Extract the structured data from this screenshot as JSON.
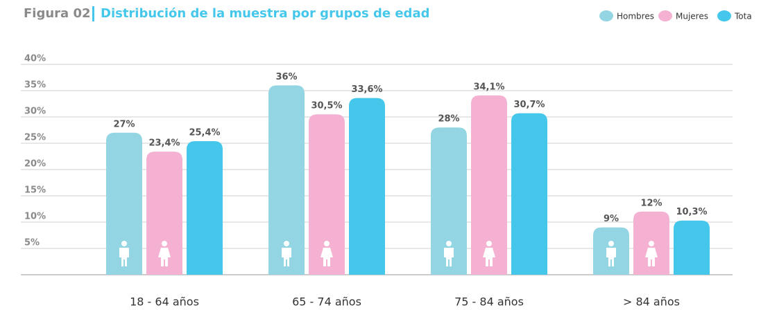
{
  "chart_data": {
    "type": "bar",
    "figure_label": "Figura 02",
    "title": "Distribución de la muestra por grupos de edad",
    "categories": [
      "18 - 64 años",
      "65 - 74 años",
      "75 - 84 años",
      "> 84 años"
    ],
    "series": [
      {
        "name": "Hombres",
        "color": "#93d5e3",
        "values": [
          27,
          36,
          28,
          9
        ],
        "value_labels": [
          "27%",
          "36%",
          "28%",
          "9%"
        ]
      },
      {
        "name": "Mujeres",
        "color": "#f5b1d2",
        "values": [
          23.4,
          30.5,
          34.1,
          12
        ],
        "value_labels": [
          "23,4%",
          "30,5%",
          "34,1%",
          "12%"
        ]
      },
      {
        "name": "Tota",
        "color": "#45c7ec",
        "values": [
          25.4,
          33.6,
          30.7,
          10.3
        ],
        "value_labels": [
          "25,4%",
          "33,6%",
          "30,7%",
          "10,3%"
        ]
      }
    ],
    "ylim": [
      0,
      40
    ],
    "yticks": [
      {
        "value": 5,
        "label": "5%"
      },
      {
        "value": 10,
        "label": "10%"
      },
      {
        "value": 15,
        "label": "15%"
      },
      {
        "value": 20,
        "label": "20%"
      },
      {
        "value": 25,
        "label": "25%"
      },
      {
        "value": 30,
        "label": "30%"
      },
      {
        "value": 35,
        "label": "35%"
      },
      {
        "value": 40,
        "label": "40%"
      }
    ],
    "grid": true,
    "legend": "top-right"
  }
}
